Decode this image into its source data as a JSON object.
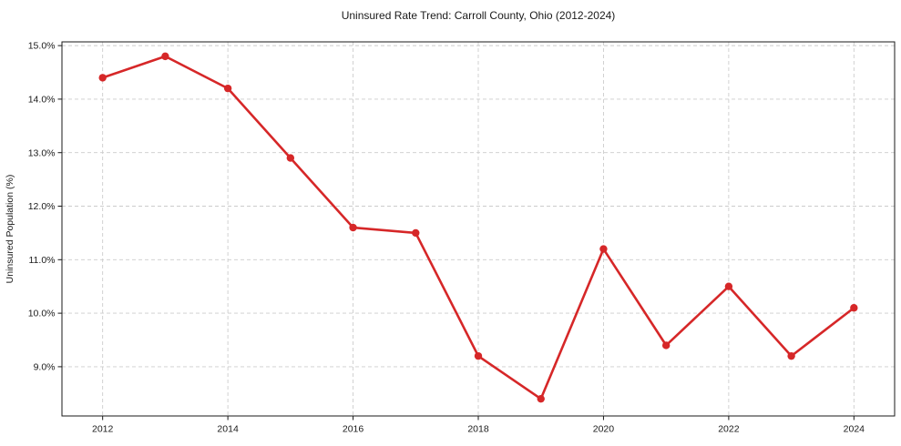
{
  "chart_data": {
    "type": "line",
    "title": "Uninsured Rate Trend: Carroll County, Ohio (2012-2024)",
    "xlabel": "",
    "ylabel": "Uninsured Population (%)",
    "x": [
      2012,
      2013,
      2014,
      2015,
      2016,
      2017,
      2018,
      2019,
      2020,
      2021,
      2022,
      2023,
      2024
    ],
    "values": [
      14.4,
      14.8,
      14.2,
      12.9,
      11.6,
      11.5,
      9.2,
      8.4,
      11.2,
      9.4,
      10.5,
      9.2,
      10.1
    ],
    "xlim": [
      2011.35,
      2024.65
    ],
    "ylim": [
      8.08,
      15.07
    ],
    "xticks": [
      2012,
      2014,
      2016,
      2018,
      2020,
      2022,
      2024
    ],
    "xtick_labels": [
      "2012",
      "2014",
      "2016",
      "2018",
      "2020",
      "2022",
      "2024"
    ],
    "yticks": [
      9,
      10,
      11,
      12,
      13,
      14,
      15
    ],
    "ytick_labels": [
      "9.0%",
      "10.0%",
      "11.0%",
      "12.0%",
      "13.0%",
      "14.0%",
      "15.0%"
    ],
    "grid": true,
    "grid_style": "dashed",
    "legend": "none",
    "marker": "circle",
    "colors": {
      "line": "#d62728",
      "marker": "#d62728",
      "grid": "#cccccc",
      "axis": "#1a1a1a",
      "text": "#1a1a1a",
      "background": "#ffffff"
    }
  }
}
